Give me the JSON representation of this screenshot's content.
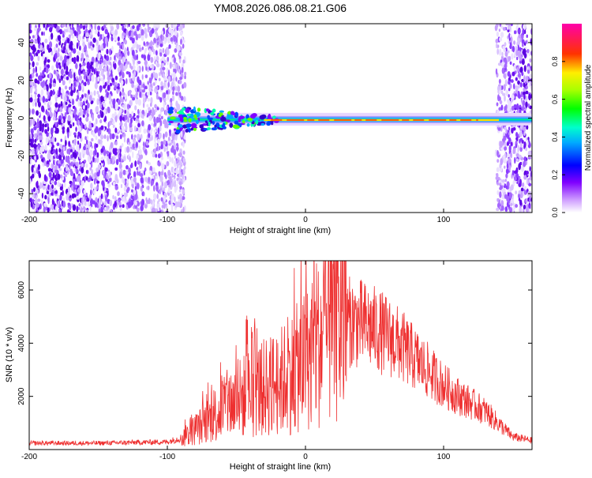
{
  "page_title": "YM08.2026.086.08.21.G06",
  "chart_data": [
    {
      "type": "heatmap",
      "title": "YM08.2026.086.08.21.G06",
      "xlabel": "Height of straight line (km)",
      "ylabel": "Frequency (Hz)",
      "xlim": [
        -200,
        164
      ],
      "ylim": [
        -50,
        50
      ],
      "x_ticks": [
        "-200",
        "-100",
        "0",
        "100"
      ],
      "x_tick_values": [
        -200,
        -100,
        0,
        100
      ],
      "y_ticks": [
        "-40",
        "-20",
        "0",
        "20",
        "40"
      ],
      "y_tick_values": [
        -40,
        -20,
        0,
        20,
        40
      ],
      "colorbar": {
        "label": "Normalized spectral amplitude",
        "range": [
          0,
          1
        ],
        "ticks": [
          "0.0",
          "0.2",
          "0.4",
          "0.6",
          "0.8"
        ],
        "tick_values": [
          0.0,
          0.2,
          0.4,
          0.6,
          0.8
        ]
      },
      "features": [
        {
          "name": "left noise region",
          "x_range": [
            -200,
            -87
          ],
          "freq_range": [
            -50,
            50
          ],
          "amplitude": 0.1
        },
        {
          "name": "right noise region",
          "x_range": [
            138,
            164
          ],
          "freq_range": [
            -50,
            50
          ],
          "amplitude": 0.1
        },
        {
          "name": "signal band",
          "x_range": [
            -100,
            164
          ],
          "center_freq": -1,
          "amplitude_peak": 0.9
        }
      ]
    },
    {
      "type": "line",
      "xlabel": "Height of straight line (km)",
      "ylabel": "SNR (10 * v/v)",
      "xlim": [
        -200,
        164
      ],
      "ylim": [
        0,
        7100
      ],
      "x_ticks": [
        "-200",
        "-100",
        "0",
        "100"
      ],
      "x_tick_values": [
        -200,
        -100,
        0,
        100
      ],
      "y_ticks": [
        "2000",
        "4000",
        "6000"
      ],
      "y_tick_values": [
        2000,
        4000,
        6000
      ],
      "color": "#ee3030",
      "series": [
        {
          "name": "SNR",
          "envelope_x": [
            -200,
            -150,
            -120,
            -100,
            -90,
            -80,
            -70,
            -60,
            -50,
            -40,
            -30,
            -20,
            -10,
            0,
            5,
            10,
            15,
            20,
            30,
            40,
            50,
            60,
            70,
            80,
            90,
            100,
            110,
            120,
            130,
            140,
            150,
            164
          ],
          "envelope_y": [
            250,
            250,
            280,
            300,
            450,
            800,
            1200,
            1700,
            2000,
            2300,
            2500,
            2700,
            3100,
            3600,
            3900,
            4300,
            4700,
            5000,
            5000,
            4900,
            4700,
            4400,
            4000,
            3500,
            3000,
            2500,
            2100,
            1800,
            1500,
            1000,
            500,
            350
          ]
        }
      ]
    }
  ]
}
